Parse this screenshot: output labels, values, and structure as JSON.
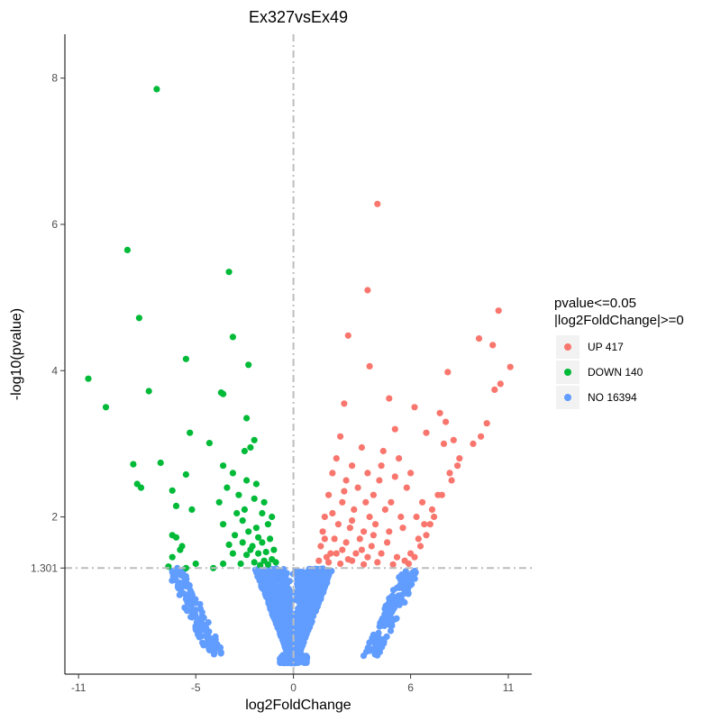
{
  "chart_data": {
    "type": "scatter",
    "title": "Ex327vsEx49",
    "xlabel": "log2FoldChange",
    "ylabel": "-log10(pvalue)",
    "xlim": [
      -11.7,
      12.2
    ],
    "ylim": [
      -0.15,
      8.6
    ],
    "xticks": [
      -11,
      -5,
      0,
      6,
      11
    ],
    "yticks": [
      2,
      4,
      6,
      8
    ],
    "threshold_y": 1.301,
    "threshold_y_label": "1.301",
    "threshold_x": 0,
    "grid": false,
    "legend": {
      "title_line1": "pvalue<=0.05",
      "title_line2": "|log2FoldChange|>=0",
      "placement": "right",
      "entries": [
        {
          "label": "UP 417",
          "color": "#F8766D"
        },
        {
          "label": "DOWN 140",
          "color": "#00BA38"
        },
        {
          "label": "NO 16394",
          "color": "#619CFF"
        }
      ]
    },
    "series": [
      {
        "name": "UP 417",
        "color": "#F8766D",
        "points": [
          [
            4.3,
            6.28
          ],
          [
            3.8,
            5.1
          ],
          [
            10.5,
            4.82
          ],
          [
            2.8,
            4.48
          ],
          [
            9.5,
            4.44
          ],
          [
            10.2,
            4.35
          ],
          [
            11.1,
            4.05
          ],
          [
            3.9,
            4.06
          ],
          [
            7.9,
            3.98
          ],
          [
            10.6,
            3.82
          ],
          [
            10.3,
            3.74
          ],
          [
            2.6,
            3.55
          ],
          [
            4.9,
            3.62
          ],
          [
            6.2,
            3.5
          ],
          [
            7.5,
            3.42
          ],
          [
            7.8,
            3.3
          ],
          [
            9.9,
            3.28
          ],
          [
            9.6,
            3.1
          ],
          [
            5.2,
            3.2
          ],
          [
            6.8,
            3.15
          ],
          [
            8.2,
            3.05
          ],
          [
            7.7,
            3.0
          ],
          [
            2.4,
            3.1
          ],
          [
            3.5,
            2.95
          ],
          [
            4.6,
            2.9
          ],
          [
            5.4,
            2.8
          ],
          [
            6.0,
            2.6
          ],
          [
            8.4,
            2.7
          ],
          [
            8.1,
            2.5
          ],
          [
            2.2,
            2.8
          ],
          [
            3.0,
            2.7
          ],
          [
            3.8,
            2.6
          ],
          [
            4.4,
            2.5
          ],
          [
            5.8,
            2.4
          ],
          [
            7.4,
            2.3
          ],
          [
            2.0,
            2.6
          ],
          [
            2.7,
            2.5
          ],
          [
            3.3,
            2.4
          ],
          [
            4.1,
            2.3
          ],
          [
            5.0,
            2.2
          ],
          [
            6.6,
            2.2
          ],
          [
            7.2,
            2.0
          ],
          [
            1.8,
            2.3
          ],
          [
            2.5,
            2.2
          ],
          [
            3.1,
            2.1
          ],
          [
            3.9,
            2.0
          ],
          [
            4.7,
            2.1
          ],
          [
            6.3,
            2.0
          ],
          [
            7.0,
            1.9
          ],
          [
            1.6,
            2.0
          ],
          [
            2.3,
            1.9
          ],
          [
            2.9,
            1.85
          ],
          [
            3.6,
            1.8
          ],
          [
            4.2,
            1.9
          ],
          [
            5.6,
            1.85
          ],
          [
            6.8,
            1.75
          ],
          [
            1.5,
            1.8
          ],
          [
            2.1,
            1.7
          ],
          [
            2.7,
            1.65
          ],
          [
            3.4,
            1.7
          ],
          [
            4.0,
            1.6
          ],
          [
            4.8,
            1.65
          ],
          [
            6.5,
            1.6
          ],
          [
            1.4,
            1.6
          ],
          [
            1.9,
            1.5
          ],
          [
            2.5,
            1.55
          ],
          [
            3.2,
            1.5
          ],
          [
            3.8,
            1.45
          ],
          [
            4.5,
            1.5
          ],
          [
            5.3,
            1.45
          ],
          [
            6.2,
            1.45
          ],
          [
            1.3,
            1.4
          ],
          [
            1.8,
            1.38
          ],
          [
            2.4,
            1.36
          ],
          [
            3.0,
            1.4
          ],
          [
            3.6,
            1.35
          ],
          [
            4.3,
            1.38
          ],
          [
            5.1,
            1.35
          ],
          [
            5.9,
            1.36
          ],
          [
            6.0,
            1.5
          ],
          [
            5.7,
            1.4
          ],
          [
            6.4,
            1.7
          ],
          [
            6.7,
            1.9
          ],
          [
            7.1,
            2.1
          ],
          [
            7.6,
            2.3
          ],
          [
            8.0,
            2.6
          ],
          [
            8.5,
            2.8
          ],
          [
            9.2,
            3.0
          ],
          [
            5.5,
            2.0
          ],
          [
            4.9,
            1.8
          ],
          [
            1.7,
            1.45
          ],
          [
            2.2,
            1.5
          ],
          [
            2.8,
            1.42
          ],
          [
            3.5,
            1.55
          ],
          [
            4.1,
            1.75
          ],
          [
            3.0,
            1.95
          ],
          [
            2.0,
            2.05
          ],
          [
            1.6,
            1.7
          ],
          [
            3.7,
            2.2
          ],
          [
            4.5,
            2.7
          ],
          [
            5.2,
            2.55
          ],
          [
            2.6,
            2.35
          ]
        ]
      },
      {
        "name": "DOWN 140",
        "color": "#00BA38",
        "points": [
          [
            -7.0,
            7.85
          ],
          [
            -8.5,
            5.65
          ],
          [
            -3.3,
            5.35
          ],
          [
            -7.9,
            4.72
          ],
          [
            -3.1,
            4.46
          ],
          [
            -5.5,
            4.16
          ],
          [
            -10.5,
            3.89
          ],
          [
            -2.3,
            4.08
          ],
          [
            -7.4,
            3.72
          ],
          [
            -3.7,
            3.7
          ],
          [
            -3.6,
            3.68
          ],
          [
            -9.6,
            3.5
          ],
          [
            -2.4,
            3.35
          ],
          [
            -5.3,
            3.15
          ],
          [
            -4.3,
            3.01
          ],
          [
            -2.0,
            3.05
          ],
          [
            -2.5,
            2.9
          ],
          [
            -2.2,
            2.95
          ],
          [
            -8.2,
            2.72
          ],
          [
            -6.8,
            2.74
          ],
          [
            -3.6,
            2.7
          ],
          [
            -3.1,
            2.6
          ],
          [
            -5.5,
            2.58
          ],
          [
            -8.0,
            2.45
          ],
          [
            -7.8,
            2.4
          ],
          [
            -2.4,
            2.5
          ],
          [
            -1.9,
            2.45
          ],
          [
            -3.4,
            2.4
          ],
          [
            -6.2,
            2.36
          ],
          [
            -2.8,
            2.3
          ],
          [
            -2.0,
            2.25
          ],
          [
            -1.5,
            2.2
          ],
          [
            -2.9,
            2.05
          ],
          [
            -6.0,
            2.15
          ],
          [
            -5.2,
            2.1
          ],
          [
            -1.6,
            2.05
          ],
          [
            -1.1,
            2.0
          ],
          [
            -2.6,
            1.95
          ],
          [
            -3.6,
            1.9
          ],
          [
            -1.3,
            1.9
          ],
          [
            -1.9,
            1.85
          ],
          [
            -2.3,
            1.8
          ],
          [
            -3.0,
            1.75
          ],
          [
            -6.0,
            1.72
          ],
          [
            -6.2,
            1.75
          ],
          [
            -1.2,
            1.7
          ],
          [
            -1.6,
            1.65
          ],
          [
            -2.1,
            1.6
          ],
          [
            -2.6,
            1.65
          ],
          [
            -3.3,
            1.62
          ],
          [
            -5.7,
            1.6
          ],
          [
            -1.0,
            1.55
          ],
          [
            -1.4,
            1.52
          ],
          [
            -1.8,
            1.5
          ],
          [
            -2.4,
            1.48
          ],
          [
            -3.1,
            1.5
          ],
          [
            -5.8,
            1.55
          ],
          [
            -1.1,
            1.42
          ],
          [
            -1.5,
            1.4
          ],
          [
            -2.0,
            1.38
          ],
          [
            -2.7,
            1.36
          ],
          [
            -3.6,
            1.36
          ],
          [
            -5.0,
            1.36
          ],
          [
            -6.2,
            1.45
          ],
          [
            -0.9,
            1.38
          ],
          [
            -1.3,
            1.35
          ],
          [
            -1.7,
            1.34
          ],
          [
            -5.5,
            1.3
          ],
          [
            -2.2,
            1.55
          ],
          [
            -1.8,
            1.72
          ],
          [
            -2.5,
            2.1
          ],
          [
            -3.8,
            2.2
          ],
          [
            -4.1,
            1.3
          ],
          [
            -6.4,
            1.32
          ]
        ]
      }
    ],
    "no_series": {
      "name": "NO 16394",
      "color": "#619CFF",
      "summary": "16394 non-significant points, -log10(pvalue) from 0 to 1.301, forming a V shape around log2FoldChange 0 with side arms out to about -6 and +6"
    }
  }
}
